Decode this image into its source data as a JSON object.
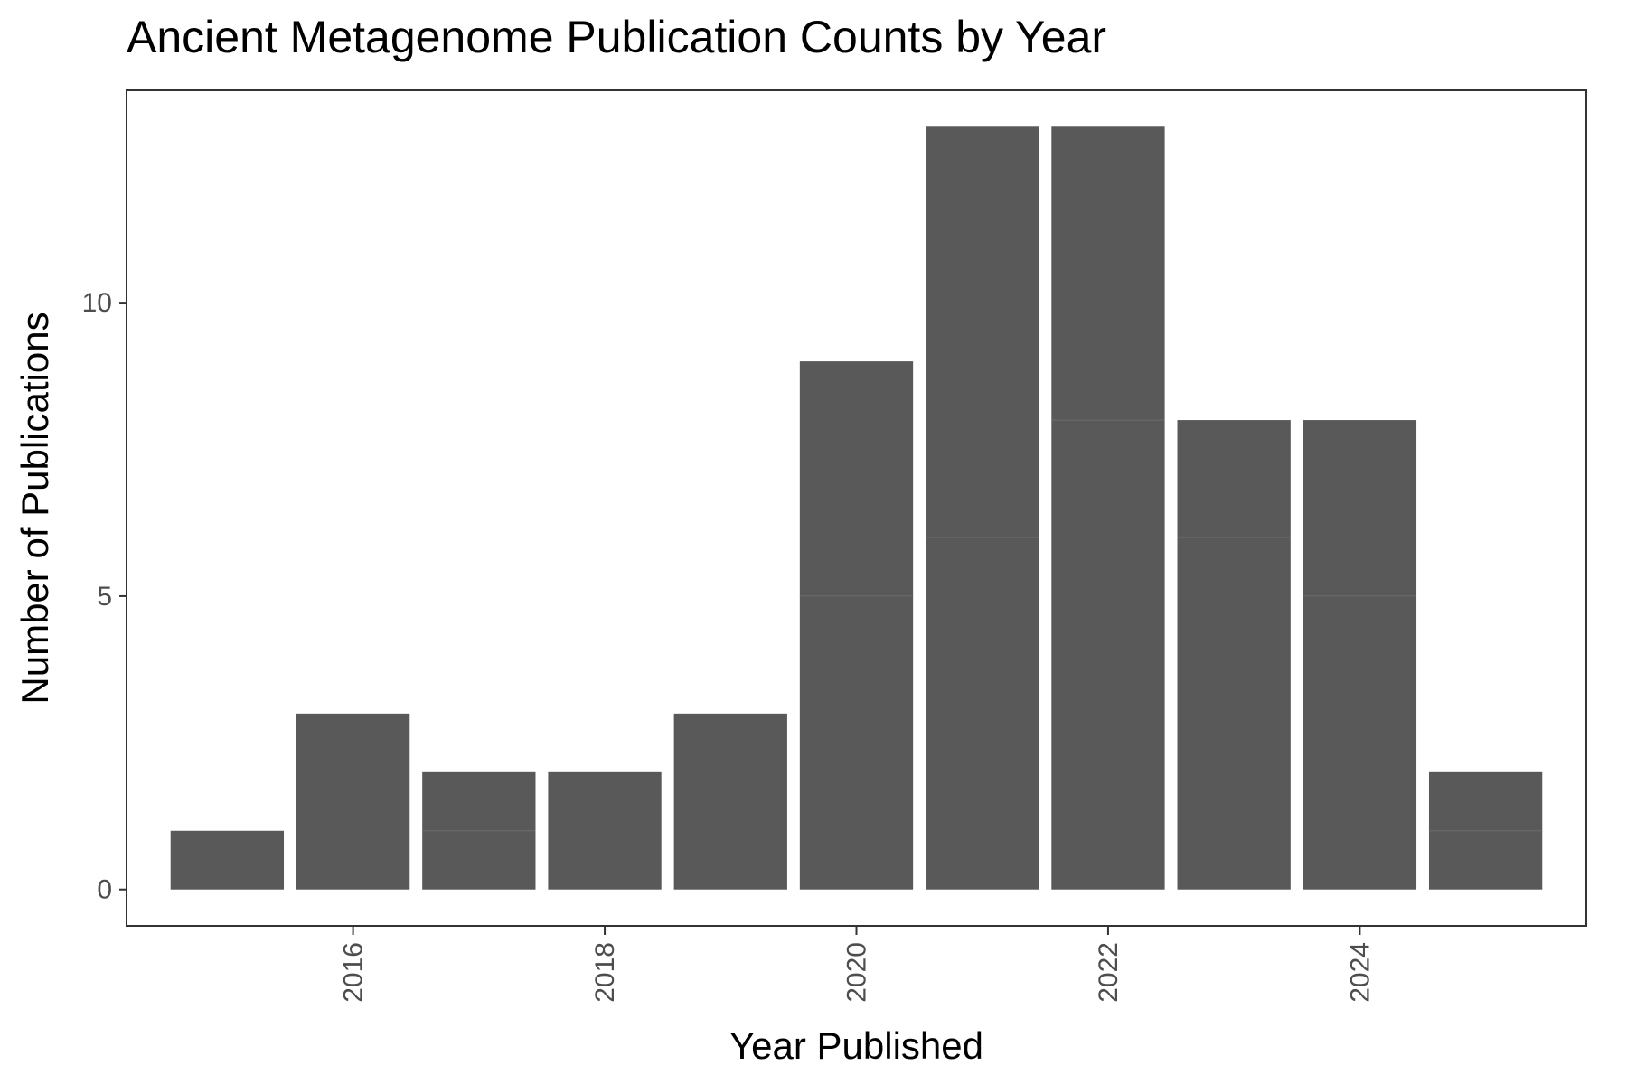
{
  "chart_data": {
    "type": "bar",
    "title": "Ancient Metagenome Publication Counts by Year",
    "xlabel": "Year Published",
    "ylabel": "Number of Publications",
    "x": [
      2015,
      2016,
      2017,
      2018,
      2019,
      2020,
      2021,
      2022,
      2023,
      2024,
      2025
    ],
    "values": [
      1,
      3,
      2,
      2,
      3,
      9,
      13,
      13,
      8,
      8,
      2
    ],
    "stack_boundaries": [
      [],
      [],
      [
        1
      ],
      [],
      [],
      [
        5
      ],
      [
        6
      ],
      [
        8
      ],
      [
        6
      ],
      [
        5
      ],
      [
        1
      ]
    ],
    "x_ticks": [
      2016,
      2018,
      2020,
      2022,
      2024
    ],
    "y_ticks": [
      0,
      5,
      10
    ],
    "xlim": [
      2014.2,
      2025.8
    ],
    "ylim": [
      -0.62,
      13.62
    ],
    "bar_color": "#595959",
    "grid": false,
    "legend": "none"
  }
}
